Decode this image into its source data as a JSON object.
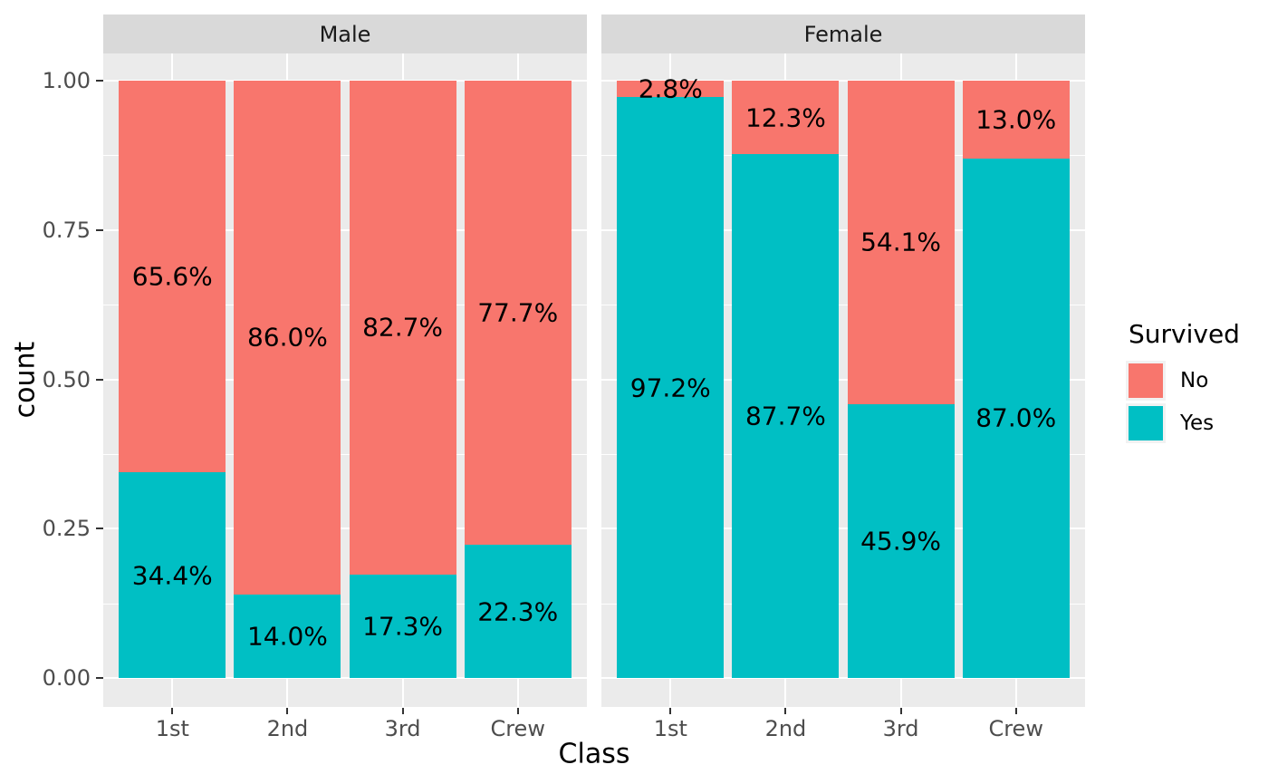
{
  "chart_data": {
    "type": "bar",
    "subtype": "stacked-fill-faceted",
    "title": "",
    "xlabel": "Class",
    "ylabel": "count",
    "ylim": [
      0,
      1
    ],
    "grid": true,
    "y_ticks": [
      {
        "value": 0.0,
        "label": "0.00"
      },
      {
        "value": 0.25,
        "label": "0.25"
      },
      {
        "value": 0.5,
        "label": "0.50"
      },
      {
        "value": 0.75,
        "label": "0.75"
      },
      {
        "value": 1.0,
        "label": "1.00"
      }
    ],
    "y_minor_ticks": [
      0.125,
      0.375,
      0.625,
      0.875
    ],
    "categories": [
      "1st",
      "2nd",
      "3rd",
      "Crew"
    ],
    "facets": [
      {
        "label": "Male",
        "series": [
          {
            "name": "No",
            "values": [
              65.6,
              86.0,
              82.7,
              77.7
            ],
            "labels": [
              "65.6%",
              "86.0%",
              "82.7%",
              "77.7%"
            ]
          },
          {
            "name": "Yes",
            "values": [
              34.4,
              14.0,
              17.3,
              22.3
            ],
            "labels": [
              "34.4%",
              "14.0%",
              "17.3%",
              "22.3%"
            ]
          }
        ]
      },
      {
        "label": "Female",
        "series": [
          {
            "name": "No",
            "values": [
              2.8,
              12.3,
              54.1,
              13.0
            ],
            "labels": [
              "2.8%",
              "12.3%",
              "54.1%",
              "13.0%"
            ]
          },
          {
            "name": "Yes",
            "values": [
              97.2,
              87.7,
              45.9,
              87.0
            ],
            "labels": [
              "97.2%",
              "87.7%",
              "45.9%",
              "87.0%"
            ]
          }
        ]
      }
    ],
    "legend": {
      "title": "Survived",
      "position": "right",
      "items": [
        {
          "label": "No",
          "color": "#F8766D"
        },
        {
          "label": "Yes",
          "color": "#00BFC4"
        }
      ]
    },
    "colors": {
      "No": "#F8766D",
      "Yes": "#00BFC4"
    },
    "theme": {
      "panel_bg": "#EBEBEB",
      "strip_bg": "#D9D9D9",
      "grid_color": "#FFFFFF",
      "tick_mark_color": "#333333",
      "tick_text_color": "#4D4D4D",
      "strip_text_color": "#1A1A1A",
      "axis_title_color": "#000000",
      "bar_label_color": "#000000",
      "legend_key_bg": "#F2F2F2",
      "background": "#FFFFFF"
    }
  }
}
